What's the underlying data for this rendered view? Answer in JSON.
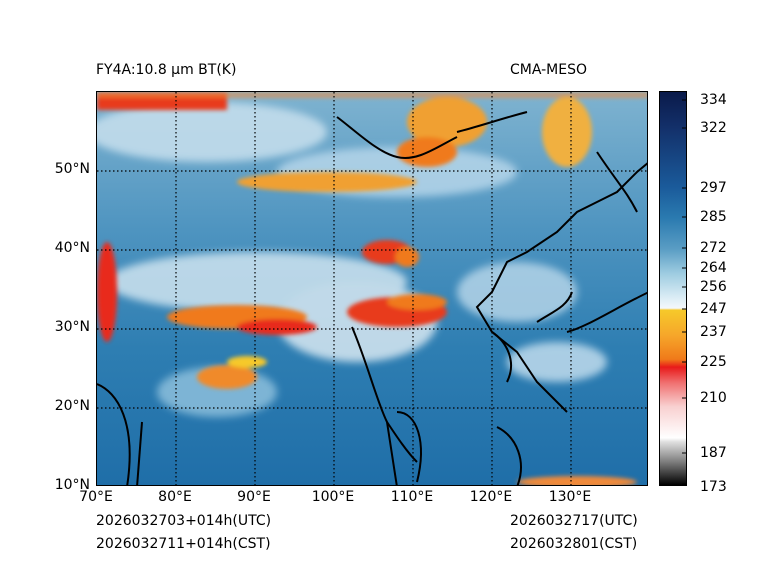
{
  "header": {
    "title_left": "FY4A:10.8 μm BT(K)",
    "title_right": "CMA-MESO"
  },
  "map": {
    "lat_ticks": [
      "50°N",
      "40°N",
      "30°N",
      "20°N",
      "10°N"
    ],
    "lon_ticks": [
      "70°E",
      "80°E",
      "90°E",
      "100°E",
      "110°E",
      "120°E",
      "130°E"
    ]
  },
  "colorbar": {
    "labels": [
      "334",
      "322",
      "297",
      "285",
      "272",
      "264",
      "256",
      "247",
      "237",
      "225",
      "210",
      "187",
      "173"
    ],
    "colors": {
      "cold_top": "#0a1a4a",
      "deep_blue": "#1a5a9a",
      "mid_blue": "#2a7ab0",
      "light_blue": "#9ccbe0",
      "white": "#f4f8fb",
      "yellow": "#f6c92a",
      "orange": "#f07a1a",
      "red": "#e81a1a",
      "pale_red": "#f8d0d0",
      "gray": "#808080",
      "black": "#000000"
    }
  },
  "footer": {
    "init_utc": "2026032703+014h(UTC)",
    "init_cst": "2026032711+014h(CST)",
    "valid_utc": "2026032717(UTC)",
    "valid_cst": "2026032801(CST)"
  }
}
